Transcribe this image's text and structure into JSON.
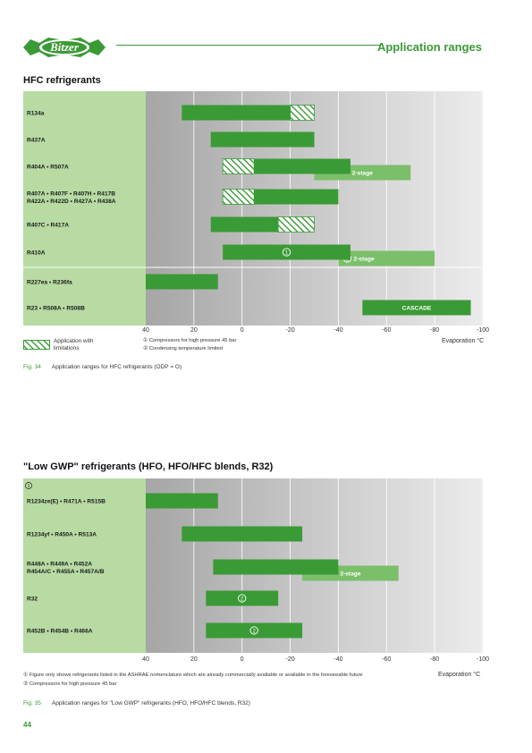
{
  "header": {
    "logo_text": "Bitzer",
    "section_title": "Application ranges"
  },
  "colors": {
    "green_bar": "#3a9a35",
    "light_green_bar": "#7bbf6a",
    "label_panel": "#b7dba3",
    "chart_bg_dark": "#a6a6a6",
    "chart_bg_light": "#ececec"
  },
  "chart_data": [
    {
      "type": "bar",
      "title": "HFC refrigerants",
      "xlabel": "Evaporation °C",
      "xlim": [
        40,
        -100
      ],
      "x_ticks": [
        "40",
        "20",
        "0",
        "-20",
        "-40",
        "-60",
        "-80",
        "-100"
      ],
      "rows": [
        {
          "label": "R134a",
          "bars": [
            {
              "from": 25,
              "to": -20,
              "style": "solid"
            },
            {
              "from": -20,
              "to": -30,
              "style": "hatched"
            }
          ]
        },
        {
          "label": "R437A",
          "bars": [
            {
              "from": 13,
              "to": -30,
              "style": "solid"
            }
          ]
        },
        {
          "label": "R404A • R507A",
          "bars": [
            {
              "from": 8,
              "to": -5,
              "style": "hatched"
            },
            {
              "from": -5,
              "to": -45,
              "style": "solid"
            },
            {
              "from": -30,
              "to": -70,
              "style": "light",
              "label": "2-stage"
            }
          ]
        },
        {
          "label": "R407A • R407F • R407H • R417B\nR422A • R422D  • R427A  • R438A",
          "bars": [
            {
              "from": 8,
              "to": -5,
              "style": "hatched"
            },
            {
              "from": -5,
              "to": -40,
              "style": "solid"
            }
          ]
        },
        {
          "label": "R407C • R417A",
          "bars": [
            {
              "from": 13,
              "to": -15,
              "style": "solid"
            },
            {
              "from": -15,
              "to": -30,
              "style": "hatched"
            }
          ]
        },
        {
          "label": "R410A",
          "bars": [
            {
              "from": 8,
              "to": -45,
              "style": "solid",
              "marker": "1"
            },
            {
              "from": -40,
              "to": -80,
              "style": "light",
              "label": "2-stage",
              "marker": "2"
            }
          ]
        },
        {
          "label": "R227ea • R236fa",
          "bars": [
            {
              "from": 40,
              "to": 10,
              "style": "solid"
            }
          ]
        },
        {
          "label": "R23 • R508A • R508B",
          "bars": [
            {
              "from": -50,
              "to": -95,
              "style": "solid",
              "label": "CASCADE"
            }
          ]
        }
      ],
      "legend": {
        "hatched_label": "Application with limitations",
        "footnotes": [
          {
            "marker": "1",
            "text": "Compressors for high pressure 45 bar"
          },
          {
            "marker": "2",
            "text": "Condensing temperature limited"
          }
        ]
      },
      "caption_num": "Fig. 34",
      "caption": "Application ranges for HFC refrigerants (ODP = O)"
    },
    {
      "type": "bar",
      "title": "\"Low GWP\" refrigerants (HFO, HFO/HFC blends, R32)",
      "xlabel": "Evaporation °C",
      "xlim": [
        40,
        -100
      ],
      "x_ticks": [
        "40",
        "20",
        "0",
        "-20",
        "-40",
        "-60",
        "-80",
        "-100"
      ],
      "panel_marker": "1",
      "rows": [
        {
          "label": "R1234ze(E) • R471A • R515B",
          "bars": [
            {
              "from": 40,
              "to": 10,
              "style": "solid"
            }
          ]
        },
        {
          "label": "R1234yf • R450A • R513A",
          "bars": [
            {
              "from": 25,
              "to": -25,
              "style": "solid"
            }
          ]
        },
        {
          "label": "R448A • R449A • R452A\nR454A/C • R455A • R457A/B",
          "bars": [
            {
              "from": 12,
              "to": -40,
              "style": "solid"
            },
            {
              "from": -25,
              "to": -65,
              "style": "light",
              "label": "2-stage"
            }
          ]
        },
        {
          "label": "R32",
          "bars": [
            {
              "from": 15,
              "to": -15,
              "style": "solid",
              "marker": "2"
            }
          ]
        },
        {
          "label": "R452B • R454B • R466A",
          "bars": [
            {
              "from": 15,
              "to": -25,
              "style": "solid",
              "marker": "2"
            }
          ]
        }
      ],
      "legend": {
        "footnotes": [
          {
            "marker": "1",
            "text": "Figure only shows refrigerants listed in the ASHRAE nomenclature which are already commercially available or available in the foreseeable future"
          },
          {
            "marker": "2",
            "text": "Compressors for high pressure 45 bar"
          }
        ]
      },
      "caption_num": "Fig. 35",
      "caption": "Application ranges for \"Low GWP\" refrigerants (HFO, HFO/HFC blends, R32)"
    }
  ],
  "page_number": "44"
}
